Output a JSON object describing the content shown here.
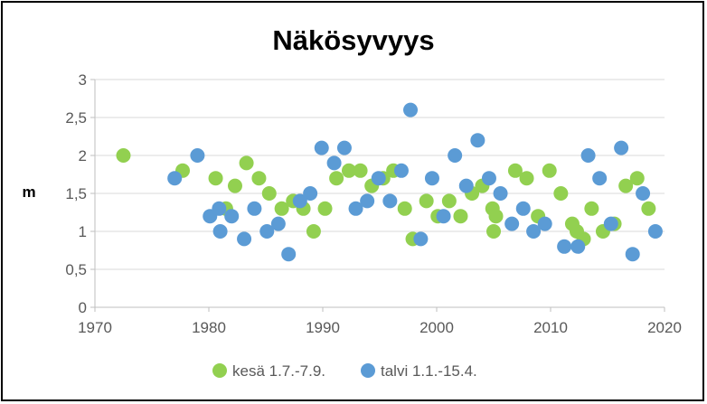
{
  "chart_data": {
    "type": "scatter",
    "title": "Näkösyvyys",
    "xlabel": "",
    "ylabel": "m",
    "xlim": [
      1970,
      2020
    ],
    "ylim": [
      0,
      3
    ],
    "x_ticks": [
      "1970",
      "1980",
      "1990",
      "2000",
      "2010",
      "2020"
    ],
    "y_ticks": [
      "0",
      "0,5",
      "1",
      "1,5",
      "2",
      "2,5",
      "3"
    ],
    "grid": "horizontal",
    "legend_position": "bottom",
    "series": [
      {
        "name": "kesä 1.7.-7.9.",
        "color": "#92D050",
        "points": [
          [
            1972.5,
            2.0
          ],
          [
            1977.7,
            1.8
          ],
          [
            1980.6,
            1.7
          ],
          [
            1981.5,
            1.3
          ],
          [
            1982.3,
            1.6
          ],
          [
            1983.3,
            1.9
          ],
          [
            1984.4,
            1.7
          ],
          [
            1985.3,
            1.5
          ],
          [
            1986.4,
            1.3
          ],
          [
            1987.4,
            1.4
          ],
          [
            1988.3,
            1.3
          ],
          [
            1989.2,
            1.0
          ],
          [
            1990.2,
            1.3
          ],
          [
            1991.2,
            1.7
          ],
          [
            1992.3,
            1.8
          ],
          [
            1993.3,
            1.8
          ],
          [
            1994.3,
            1.6
          ],
          [
            1995.3,
            1.7
          ],
          [
            1996.2,
            1.8
          ],
          [
            1997.2,
            1.3
          ],
          [
            1997.9,
            0.9
          ],
          [
            1999.1,
            1.4
          ],
          [
            2000.1,
            1.2
          ],
          [
            2001.1,
            1.4
          ],
          [
            2002.1,
            1.2
          ],
          [
            2003.1,
            1.5
          ],
          [
            2004.0,
            1.6
          ],
          [
            2004.9,
            1.3
          ],
          [
            2005.0,
            1.0
          ],
          [
            2005.2,
            1.2
          ],
          [
            2006.9,
            1.8
          ],
          [
            2007.9,
            1.7
          ],
          [
            2008.9,
            1.2
          ],
          [
            2009.9,
            1.8
          ],
          [
            2010.9,
            1.5
          ],
          [
            2011.9,
            1.1
          ],
          [
            2012.3,
            1.0
          ],
          [
            2012.9,
            0.9
          ],
          [
            2013.6,
            1.3
          ],
          [
            2014.6,
            1.0
          ],
          [
            2015.6,
            1.1
          ],
          [
            2016.6,
            1.6
          ],
          [
            2017.6,
            1.7
          ],
          [
            2018.6,
            1.3
          ]
        ]
      },
      {
        "name": "talvi 1.1.-15.4.",
        "color": "#5B9BD5",
        "points": [
          [
            1977.0,
            1.7
          ],
          [
            1979.0,
            2.0
          ],
          [
            1980.1,
            1.2
          ],
          [
            1980.9,
            1.3
          ],
          [
            1981.0,
            1.0
          ],
          [
            1982.0,
            1.2
          ],
          [
            1983.1,
            0.9
          ],
          [
            1984.0,
            1.3
          ],
          [
            1985.1,
            1.0
          ],
          [
            1986.1,
            1.1
          ],
          [
            1987.0,
            0.7
          ],
          [
            1988.0,
            1.4
          ],
          [
            1988.9,
            1.5
          ],
          [
            1989.9,
            2.1
          ],
          [
            1991.0,
            1.9
          ],
          [
            1991.9,
            2.1
          ],
          [
            1992.9,
            1.3
          ],
          [
            1993.9,
            1.4
          ],
          [
            1994.9,
            1.7
          ],
          [
            1995.9,
            1.4
          ],
          [
            1996.9,
            1.8
          ],
          [
            1997.7,
            2.6
          ],
          [
            1998.6,
            0.9
          ],
          [
            1999.6,
            1.7
          ],
          [
            2000.6,
            1.2
          ],
          [
            2001.6,
            2.0
          ],
          [
            2002.6,
            1.6
          ],
          [
            2003.6,
            2.2
          ],
          [
            2004.6,
            1.7
          ],
          [
            2005.6,
            1.5
          ],
          [
            2006.6,
            1.1
          ],
          [
            2007.6,
            1.3
          ],
          [
            2008.5,
            1.0
          ],
          [
            2009.5,
            1.1
          ],
          [
            2011.2,
            0.8
          ],
          [
            2012.4,
            0.8
          ],
          [
            2013.3,
            2.0
          ],
          [
            2014.3,
            1.7
          ],
          [
            2015.3,
            1.1
          ],
          [
            2016.2,
            2.1
          ],
          [
            2017.2,
            0.7
          ],
          [
            2018.1,
            1.5
          ],
          [
            2019.2,
            1.0
          ]
        ]
      }
    ]
  }
}
